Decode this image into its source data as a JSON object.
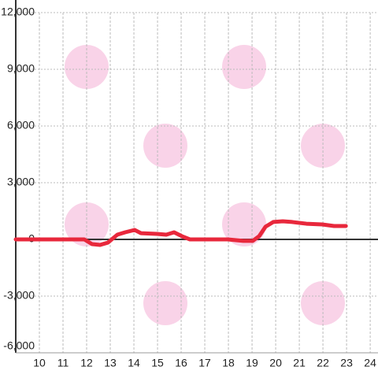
{
  "chart_data": {
    "type": "line",
    "x": [
      9,
      11.9,
      12.23,
      12.57,
      12.9,
      13.3,
      13.63,
      14.03,
      14.3,
      14.97,
      15.37,
      15.7,
      16.03,
      16.37,
      17.97,
      18.63,
      19.03,
      19.3,
      19.57,
      19.9,
      20.3,
      20.7,
      21.3,
      21.97,
      22.47,
      22.97
    ],
    "series": [
      {
        "color": "#e8283c",
        "values": [
          0,
          0,
          -250,
          -290,
          -170,
          250,
          375,
          500,
          330,
          290,
          250,
          375,
          170,
          0,
          0,
          -80,
          -80,
          170,
          670,
          920,
          960,
          920,
          830,
          790,
          710,
          710
        ]
      }
    ],
    "xlim": [
      9,
      24.33
    ],
    "ylim": [
      -6000,
      12000
    ],
    "xticks": [
      10,
      11,
      12,
      13,
      14,
      15,
      16,
      17,
      18,
      19,
      20,
      21,
      22,
      23,
      24
    ],
    "yticks": [
      {
        "value": -6000,
        "label": "-6,000"
      },
      {
        "value": -3000,
        "label": "-3,000"
      },
      0,
      {
        "value": 3000,
        "label": "3,000"
      },
      {
        "value": 6000,
        "label": "6,000"
      },
      {
        "value": 9000,
        "label": "9,000"
      },
      {
        "value": 12000,
        "label": "12,000"
      }
    ],
    "grid": true
  }
}
